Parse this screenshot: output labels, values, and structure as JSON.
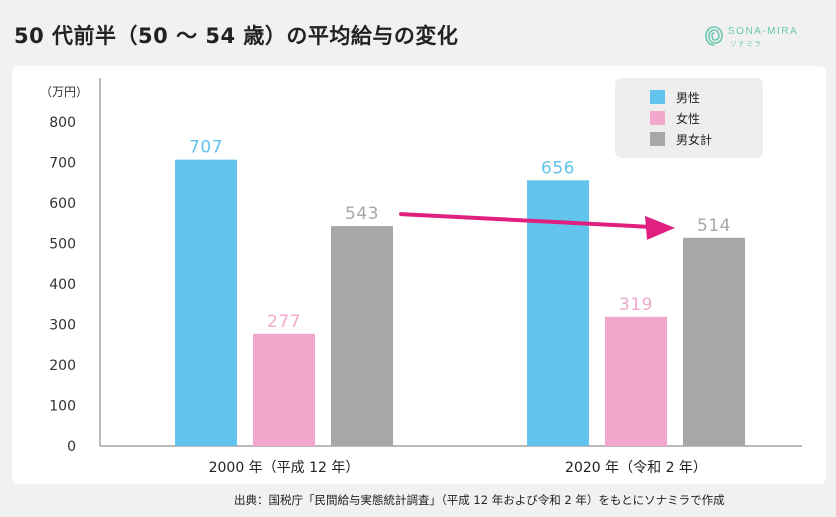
{
  "title": "50 代前半（50 ～ 54 歳）の平均給与の変化",
  "logo": {
    "text": "SONA-MIRA",
    "subtext": "ソナミラ"
  },
  "source": "出典：国税庁「民間給与実態統計調査」（平成 12 年および令和 2 年）をもとにソナミラで作成",
  "chart_data": {
    "type": "bar",
    "ylabel": "（万円）",
    "ylim": [
      0,
      800
    ],
    "yticks": [
      0,
      100,
      200,
      300,
      400,
      500,
      600,
      700,
      800
    ],
    "categories": [
      "2000 年（平成 12 年）",
      "2020 年（令和 2 年）"
    ],
    "series": [
      {
        "name": "男性",
        "color": "#62c3ec",
        "values": [
          707,
          656
        ]
      },
      {
        "name": "女性",
        "color": "#f2a7cc",
        "values": [
          277,
          319
        ]
      },
      {
        "name": "男女計",
        "color": "#a7a7a7",
        "values": [
          543,
          514
        ]
      }
    ],
    "grid": false,
    "legend_position": "top-right",
    "annotation": {
      "type": "arrow",
      "color": "#e0207e",
      "from_value": 543,
      "to_value": 514
    }
  }
}
